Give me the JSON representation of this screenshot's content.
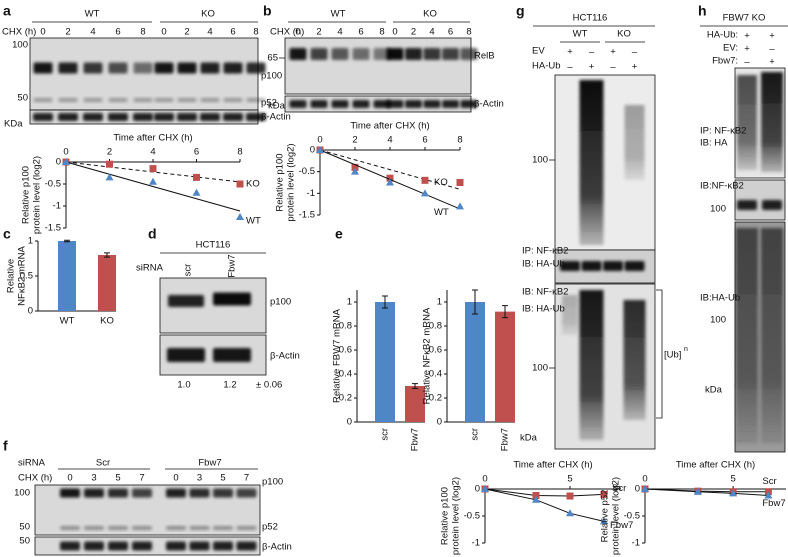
{
  "panel_letters": [
    "a",
    "b",
    "c",
    "d",
    "e",
    "f",
    "g",
    "h"
  ],
  "blots": {
    "a": {
      "groups": [
        "WT",
        "KO"
      ],
      "treatment": "CHX (h)",
      "lanes": [
        "0",
        "2",
        "4",
        "6",
        "8",
        "0",
        "2",
        "4",
        "6",
        "8"
      ],
      "markers": [
        "100",
        "50"
      ],
      "bands": [
        "p100",
        "p52",
        "β-Actin"
      ],
      "unit": "KDa"
    },
    "b": {
      "groups": [
        "WT",
        "KO"
      ],
      "treatment": "CHX (h)",
      "lanes": [
        "0",
        "2",
        "4",
        "6",
        "8",
        "0",
        "2",
        "4",
        "6",
        "8"
      ],
      "markers": [
        "65"
      ],
      "bands": [
        "RelB",
        "β-Actin"
      ],
      "unit": "kDa"
    },
    "d": {
      "cell_line": "HCT116",
      "treatment": "siRNA",
      "lanes": [
        "scr",
        "Fbw7"
      ],
      "bands": [
        "p100",
        "β-Actin"
      ],
      "quantification": [
        "1.0",
        "1.2",
        "± 0.06"
      ]
    },
    "f": {
      "treatment": "siRNA",
      "groups": [
        "Scr",
        "Fbw7"
      ],
      "time_label": "CHX (h)",
      "lanes": [
        "0",
        "3",
        "5",
        "7",
        "0",
        "3",
        "5",
        "7"
      ],
      "markers": [
        "100",
        "50",
        "50"
      ],
      "bands": [
        "p100",
        "p52",
        "β-Actin"
      ]
    },
    "g": {
      "cell_line": "HCT116",
      "groups": [
        "WT",
        "KO"
      ],
      "conditions": [
        {
          "name": "EV",
          "signs": [
            "+",
            "–",
            "+",
            "–"
          ]
        },
        {
          "name": "HA-Ub",
          "signs": [
            "–",
            "+",
            "–",
            "+"
          ]
        }
      ],
      "probes": [
        "IP: NF-κB2",
        "IB: HA-Ub",
        "IB: NF-κB2",
        "IB: HA-Ub"
      ],
      "markers": [
        "100",
        "100"
      ],
      "unit": "kDa",
      "bracket": {
        "text": "[Ub]",
        "sup": "n"
      }
    },
    "h": {
      "cell_line": "FBW7 KO",
      "conditions": [
        {
          "name": "HA-Ub:",
          "signs": [
            "+",
            "+"
          ]
        },
        {
          "name": "EV:",
          "signs": [
            "+",
            "–"
          ]
        },
        {
          "name": "Fbw7:",
          "signs": [
            "–",
            "+"
          ]
        }
      ],
      "probes": [
        "IP: NF-κB2",
        "IB: HA",
        "IB:NF-κB2",
        "IB:HA-Ub"
      ],
      "markers": [
        "100",
        "100"
      ],
      "unit": "kDa"
    }
  },
  "chart_data": [
    {
      "type": "line",
      "fit": true,
      "title": "Time after CHX (h)",
      "ylabel": [
        "Relative p100",
        "protein level (log2)"
      ],
      "x": [
        0,
        2,
        4,
        6,
        8
      ],
      "xlim": [
        0,
        8
      ],
      "xticks": [
        0,
        2,
        4,
        6,
        8
      ],
      "ylim": [
        -1.5,
        0
      ],
      "yticks": [
        0,
        -0.5,
        -1,
        -1.5
      ],
      "series": [
        {
          "name": "KO",
          "color": "#c0504d",
          "marker": "square",
          "dashed": true,
          "values": [
            0,
            -0.05,
            -0.15,
            -0.35,
            -0.5
          ]
        },
        {
          "name": "WT",
          "color": "#4f86c6",
          "marker": "triangle",
          "dashed": false,
          "values": [
            0,
            -0.35,
            -0.45,
            -0.7,
            -1.25
          ]
        }
      ]
    },
    {
      "type": "line",
      "fit": true,
      "title": "Time after CHX (h)",
      "ylabel": [
        "Relative p100",
        "protein level (log2)"
      ],
      "x": [
        0,
        2,
        4,
        6,
        8
      ],
      "xlim": [
        0,
        8
      ],
      "xticks": [
        0,
        2,
        4,
        6,
        8
      ],
      "ylim": [
        -1.5,
        0
      ],
      "yticks": [
        0,
        -0.5,
        -1,
        -1.5
      ],
      "series": [
        {
          "name": "KO",
          "color": "#c0504d",
          "marker": "square",
          "dashed": true,
          "values": [
            0,
            -0.4,
            -0.65,
            -0.7,
            -0.75
          ]
        },
        {
          "name": "WT",
          "color": "#4f86c6",
          "marker": "triangle",
          "dashed": false,
          "values": [
            0,
            -0.5,
            -0.75,
            -1,
            -1.3
          ]
        }
      ]
    },
    {
      "type": "bar",
      "ylabel": [
        "Relative",
        "NFκB2 mRNA"
      ],
      "categories": [
        "WT",
        "KO"
      ],
      "values": [
        1,
        0.8
      ],
      "errors": [
        0.01,
        0.03
      ],
      "colors": [
        "#4f86c6",
        "#c0504d"
      ],
      "ylim": [
        0,
        1
      ],
      "yticks": [
        0,
        0.5,
        1
      ],
      "rotate_labels": false
    },
    {
      "type": "bar",
      "ylabel": [
        "Relative FBW7 mRNA"
      ],
      "categories": [
        "scr",
        "Fbw7"
      ],
      "values": [
        1,
        0.3
      ],
      "errors": [
        0.05,
        0.02
      ],
      "colors": [
        "#4f86c6",
        "#c0504d"
      ],
      "ylim": [
        0,
        1.1
      ],
      "yticks": [
        0,
        0.2,
        0.4,
        0.6,
        0.8,
        1
      ],
      "rotate_labels": true
    },
    {
      "type": "bar",
      "ylabel": [
        "Relative NFκB2 mRNA"
      ],
      "categories": [
        "scr",
        "Fbw7"
      ],
      "values": [
        1,
        0.92
      ],
      "errors": [
        0.1,
        0.05
      ],
      "colors": [
        "#4f86c6",
        "#c0504d"
      ],
      "ylim": [
        0,
        1.1
      ],
      "yticks": [
        0,
        0.2,
        0.4,
        0.6,
        0.8,
        1
      ],
      "rotate_labels": true
    },
    {
      "type": "line",
      "fit": false,
      "title": "Time after CHX (h)",
      "ylabel": [
        "Relative p100",
        "protein level (log2)"
      ],
      "x": [
        0,
        3,
        5,
        7
      ],
      "xlim": [
        0,
        8
      ],
      "xticks": [
        0,
        5
      ],
      "ylim": [
        -1,
        0
      ],
      "yticks": [
        0,
        -0.5,
        -1
      ],
      "series": [
        {
          "name": "Scr",
          "color": "#c0504d",
          "marker": "square",
          "dashed": false,
          "values": [
            0,
            -0.12,
            -0.13,
            -0.1
          ]
        },
        {
          "name": "Fbw7",
          "color": "#4f86c6",
          "marker": "triangle",
          "dashed": false,
          "values": [
            0,
            -0.2,
            -0.45,
            -0.6
          ]
        }
      ]
    },
    {
      "type": "line",
      "fit": false,
      "title": "Time after CHX (h)",
      "ylabel": [
        "Relative p52",
        "protein level (log2)"
      ],
      "x": [
        0,
        3,
        5,
        7
      ],
      "xlim": [
        0,
        8
      ],
      "xticks": [
        0,
        5
      ],
      "ylim": [
        -1,
        0
      ],
      "yticks": [
        0,
        -0.5,
        -1
      ],
      "series": [
        {
          "name": "Scr",
          "color": "#c0504d",
          "marker": "square",
          "dashed": false,
          "values": [
            0,
            -0.04,
            -0.05,
            -0.05
          ]
        },
        {
          "name": "Fbw7",
          "color": "#4f86c6",
          "marker": "triangle",
          "dashed": false,
          "values": [
            0,
            -0.05,
            -0.08,
            -0.12
          ]
        }
      ]
    }
  ]
}
